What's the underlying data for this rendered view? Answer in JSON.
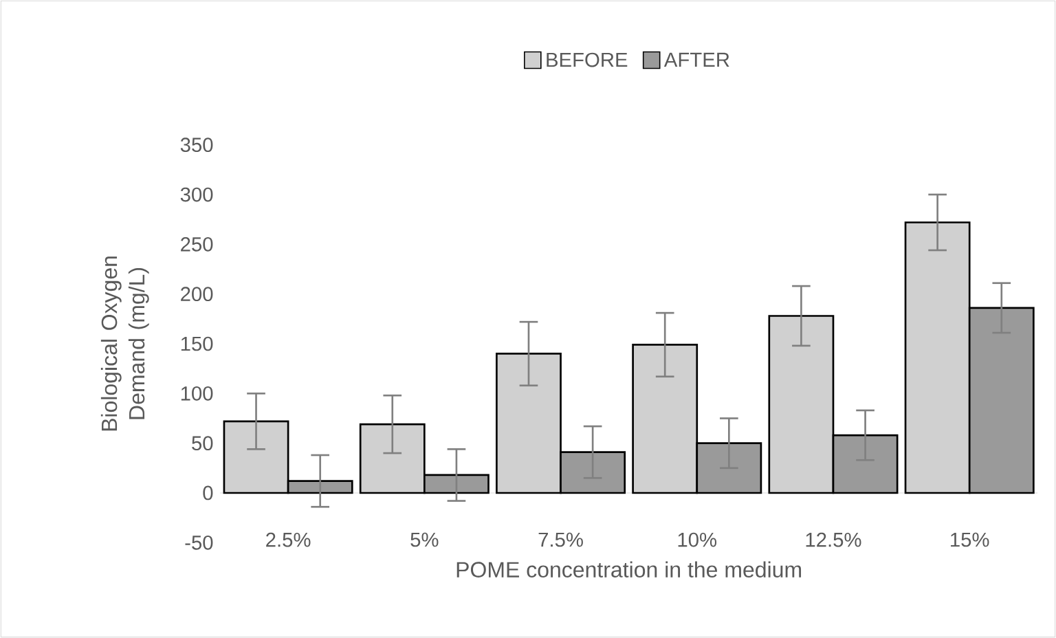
{
  "chart_data": {
    "type": "bar",
    "xlabel": "POME concentration in the medium",
    "ylabel": "Biological Oxygen Demand (mg/L)",
    "categories": [
      "2.5%",
      "5%",
      "7.5%",
      "10%",
      "12.5%",
      "15%"
    ],
    "series": [
      {
        "name": "BEFORE",
        "color": "#d0d0d0",
        "values": [
          72,
          69,
          140,
          149,
          178,
          272
        ],
        "errors": [
          28,
          29,
          32,
          32,
          30,
          28
        ]
      },
      {
        "name": "AFTER",
        "color": "#9a9a9a",
        "values": [
          12,
          18,
          41,
          50,
          58,
          186
        ],
        "errors": [
          26,
          26,
          26,
          25,
          25,
          25
        ]
      }
    ],
    "ylim": [
      -50,
      350
    ],
    "yticks": [
      -50,
      0,
      50,
      100,
      150,
      200,
      250,
      300,
      350
    ],
    "legend": "top",
    "grid": false
  }
}
